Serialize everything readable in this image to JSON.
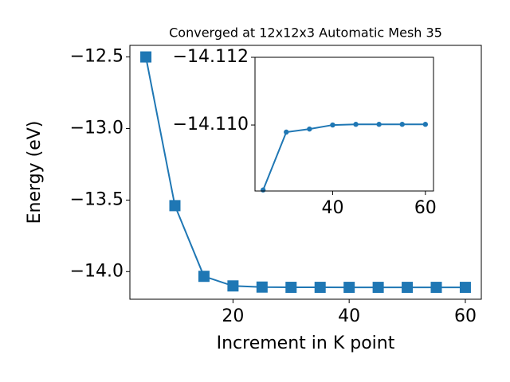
{
  "chart_data": [
    {
      "type": "line",
      "title": "Converged at 12x12x3 Automatic Mesh 35",
      "x_label": "Increment in K point",
      "y_label": "Energy (eV)",
      "x": [
        5,
        10,
        15,
        20,
        25,
        30,
        35,
        40,
        45,
        50,
        55,
        60
      ],
      "values": [
        -12.5,
        -13.539,
        -14.033,
        -14.1,
        -14.10808,
        -14.10979,
        -14.10988,
        -14.11,
        -14.11002,
        -14.11002,
        -14.11002,
        -14.11002
      ],
      "color": "#1f77b4",
      "marker": "square",
      "xlim": [
        2.25,
        62.75
      ],
      "xticks": [
        20,
        40,
        60
      ],
      "ylim": [
        -14.193,
        -12.419
      ],
      "yticks": [
        {
          "value": -12.5,
          "label": "−12.5"
        },
        {
          "value": -13.0,
          "label": "−13.0"
        },
        {
          "value": -13.5,
          "label": "−13.5"
        },
        {
          "value": -14.0,
          "label": "−14.0"
        }
      ]
    },
    {
      "type": "line",
      "x": [
        25,
        30,
        35,
        40,
        45,
        50,
        55,
        60
      ],
      "values": [
        -14.10808,
        -14.10979,
        -14.10988,
        -14.11,
        -14.11002,
        -14.11002,
        -14.11002,
        -14.11002
      ],
      "color": "#1f77b4",
      "marker": "circle",
      "xlim": [
        23.25,
        61.75
      ],
      "xticks": [
        40,
        60
      ],
      "ylim": [
        -14.10805,
        -14.112
      ],
      "yticks": [
        {
          "value": -14.112,
          "label": "−14.112"
        },
        {
          "value": -14.11,
          "label": "−14.110"
        }
      ]
    }
  ]
}
